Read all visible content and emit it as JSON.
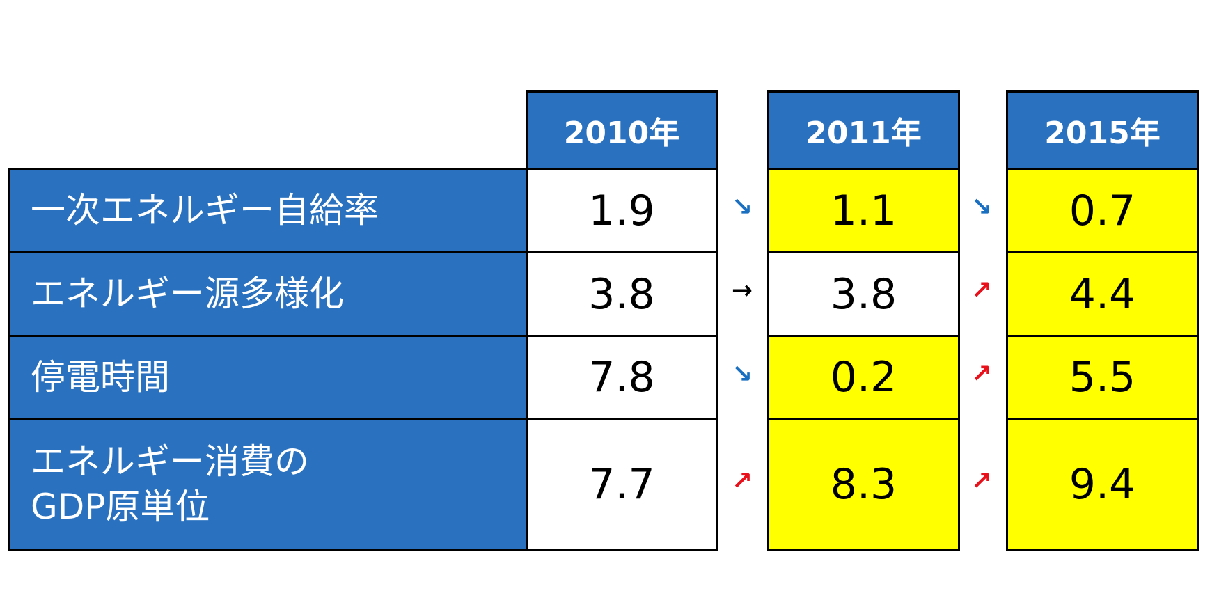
{
  "table": {
    "columns": [
      "2010年",
      "2011年",
      "2015年"
    ],
    "rows": [
      {
        "label": "一次エネルギー自給率",
        "values": [
          1.9,
          1.1,
          0.7
        ],
        "arrows": [
          "↘",
          "↘"
        ],
        "highlight": [
          false,
          true,
          true
        ]
      },
      {
        "label": "エネルギー源多様化",
        "values": [
          3.8,
          3.8,
          4.4
        ],
        "arrows": [
          "→",
          "↗"
        ],
        "highlight": [
          false,
          false,
          true
        ]
      },
      {
        "label": "停電時間",
        "values": [
          7.8,
          0.2,
          5.5
        ],
        "arrows": [
          "↘",
          "↗"
        ],
        "highlight": [
          false,
          true,
          true
        ]
      },
      {
        "label": "エネルギー消費の\nGDP原単位",
        "values": [
          7.7,
          8.3,
          9.4
        ],
        "arrows": [
          "↗",
          "↗"
        ],
        "highlight": [
          false,
          true,
          true
        ]
      }
    ]
  }
}
